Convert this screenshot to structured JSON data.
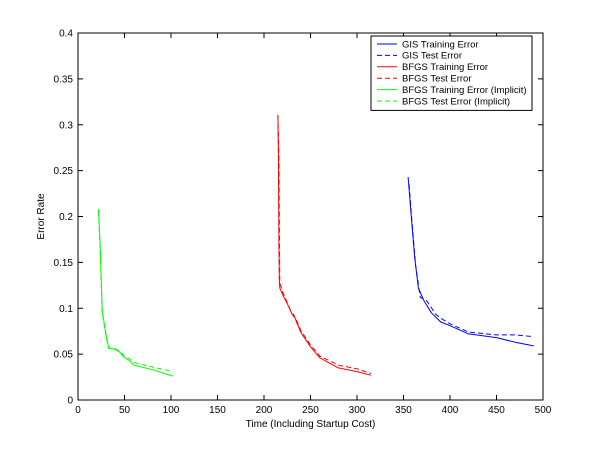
{
  "chart_data": {
    "type": "line",
    "title": "",
    "xlabel": "Time (Including Startup Cost)",
    "ylabel": "Error Rate",
    "xlim": [
      0,
      500
    ],
    "ylim": [
      0,
      0.4
    ],
    "xticks": [
      0,
      50,
      100,
      150,
      200,
      250,
      300,
      350,
      400,
      450,
      500
    ],
    "xtick_labels": [
      "0",
      "50",
      "100",
      "150",
      "200",
      "250",
      "300",
      "350",
      "400",
      "450",
      "500"
    ],
    "yticks": [
      0,
      0.05,
      0.1,
      0.15,
      0.2,
      0.25,
      0.3,
      0.35,
      0.4
    ],
    "ytick_labels": [
      "0",
      "0.05",
      "0.1",
      "0.15",
      "0.2",
      "0.25",
      "0.3",
      "0.35",
      "0.4"
    ],
    "grid": false,
    "legend_position": "top-right",
    "series": [
      {
        "name": "GIS Training Error",
        "color": "#0000ff",
        "dash": "solid",
        "x": [
          355,
          358,
          362,
          366,
          372,
          380,
          390,
          400,
          420,
          450,
          470,
          490
        ],
        "y": [
          0.243,
          0.205,
          0.155,
          0.122,
          0.108,
          0.095,
          0.085,
          0.081,
          0.072,
          0.068,
          0.063,
          0.059
        ]
      },
      {
        "name": "GIS Test Error",
        "color": "#0000ff",
        "dash": "dashed",
        "x": [
          356,
          359,
          363,
          368,
          375,
          385,
          392,
          400,
          420,
          450,
          470,
          490
        ],
        "y": [
          0.235,
          0.195,
          0.147,
          0.112,
          0.108,
          0.093,
          0.088,
          0.083,
          0.074,
          0.071,
          0.071,
          0.069
        ]
      },
      {
        "name": "BFGS Training Error",
        "color": "#ff0000",
        "dash": "solid",
        "x": [
          215,
          215.5,
          216,
          216.5,
          217,
          218,
          220,
          225,
          230,
          232,
          235,
          240,
          250,
          260,
          280,
          300,
          315
        ],
        "y": [
          0.311,
          0.265,
          0.172,
          0.13,
          0.122,
          0.12,
          0.115,
          0.105,
          0.094,
          0.093,
          0.085,
          0.073,
          0.058,
          0.046,
          0.035,
          0.031,
          0.027
        ]
      },
      {
        "name": "BFGS Test Error",
        "color": "#ff0000",
        "dash": "dashed",
        "x": [
          215,
          216,
          217,
          220,
          225,
          230,
          235,
          240,
          250,
          260,
          280,
          300,
          315
        ],
        "y": [
          0.31,
          0.265,
          0.128,
          0.118,
          0.106,
          0.094,
          0.087,
          0.075,
          0.06,
          0.048,
          0.038,
          0.034,
          0.029
        ]
      },
      {
        "name": "BFGS Training Error (Implicit)",
        "color": "#00ff00",
        "dash": "solid",
        "x": [
          22,
          24,
          26,
          28,
          30,
          33,
          40,
          45,
          50,
          55,
          60,
          80,
          102
        ],
        "y": [
          0.208,
          0.165,
          0.098,
          0.085,
          0.072,
          0.057,
          0.055,
          0.052,
          0.046,
          0.043,
          0.038,
          0.033,
          0.026
        ]
      },
      {
        "name": "BFGS Test Error (Implicit)",
        "color": "#00ff00",
        "dash": "dashed",
        "x": [
          22,
          24,
          26,
          28,
          30,
          33,
          40,
          45,
          50,
          55,
          60,
          80,
          102
        ],
        "y": [
          0.206,
          0.16,
          0.096,
          0.083,
          0.07,
          0.056,
          0.056,
          0.053,
          0.048,
          0.045,
          0.041,
          0.036,
          0.031
        ]
      }
    ]
  }
}
